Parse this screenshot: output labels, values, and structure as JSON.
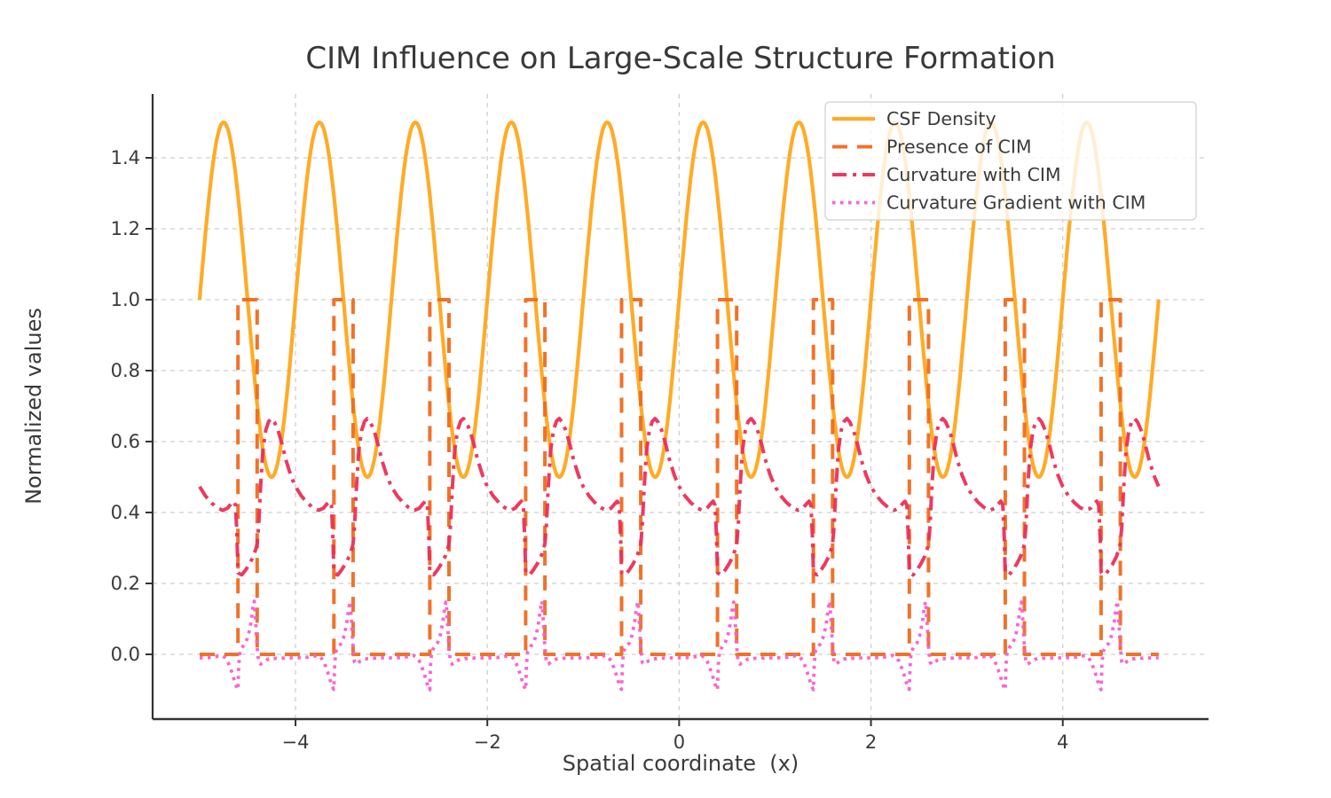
{
  "chart_data": {
    "type": "line",
    "title": "CIM Influence on Large-Scale Structure Formation",
    "xlabel": "Spatial coordinate  (x)",
    "ylabel": "Normalized values",
    "xlim": [
      -5.49,
      5.52
    ],
    "ylim": [
      -0.1825,
      1.58
    ],
    "x_range": [
      -5,
      5
    ],
    "grid": true,
    "grid_color": "#cfcfcf",
    "spine_color": "#333333",
    "text_color": "#3a3a3a",
    "xticks": {
      "values": [
        -4,
        -2,
        0,
        2,
        4
      ],
      "labels": [
        "−4",
        "−2",
        "0",
        "2",
        "4"
      ]
    },
    "yticks": {
      "values": [
        0.0,
        0.2,
        0.4,
        0.6,
        0.8,
        1.0,
        1.2,
        1.4
      ],
      "labels": [
        "0.0",
        "0.2",
        "0.4",
        "0.6",
        "0.8",
        "1.0",
        "1.2",
        "1.4"
      ]
    },
    "legend": {
      "position": "upper right",
      "background": "rgba(255,255,255,0.8)",
      "border": "#d8d8d8"
    },
    "series": [
      {
        "name": "CSF Density",
        "color": "#FFA71B",
        "style": "solid",
        "model": {
          "kind": "sine",
          "offset": 1.0,
          "amplitude": 0.5,
          "period": 1.0,
          "phase": 0.0,
          "peaks_at": [
            -4.75,
            -3.75,
            -2.75,
            -1.75,
            -0.75,
            0.25,
            1.25,
            2.25,
            3.25,
            4.25
          ],
          "max": 1.5,
          "min": 0.5
        }
      },
      {
        "name": "Presence of CIM",
        "color": "#F06A1E",
        "style": "dashed",
        "model": {
          "kind": "pulse",
          "low": 0.0,
          "high": 1.0,
          "period": 1.0,
          "start_offset": 0.4,
          "width": 0.2,
          "pulse_intervals": [
            [
              -4.6,
              -4.4
            ],
            [
              -3.6,
              -3.4
            ],
            [
              -2.6,
              -2.4
            ],
            [
              -1.6,
              -1.4
            ],
            [
              -0.6,
              -0.4
            ],
            [
              0.4,
              0.6
            ],
            [
              1.4,
              1.6
            ],
            [
              2.4,
              2.6
            ],
            [
              3.4,
              3.6
            ],
            [
              4.4,
              4.6
            ]
          ]
        }
      },
      {
        "name": "Curvature with CIM",
        "color": "#EC2E57",
        "style": "dashdot",
        "model": {
          "kind": "periodic_profile",
          "period": 1.0,
          "t_origin": 0.4,
          "points": [
            [
              0.0,
              0.23
            ],
            [
              0.04,
              0.224
            ],
            [
              0.08,
              0.238
            ],
            [
              0.12,
              0.255
            ],
            [
              0.16,
              0.276
            ],
            [
              0.19,
              0.3
            ],
            [
              0.2,
              0.312
            ],
            [
              0.215,
              0.36
            ],
            [
              0.235,
              0.47
            ],
            [
              0.26,
              0.575
            ],
            [
              0.29,
              0.632
            ],
            [
              0.32,
              0.657
            ],
            [
              0.35,
              0.665
            ],
            [
              0.38,
              0.655
            ],
            [
              0.42,
              0.63
            ],
            [
              0.46,
              0.592
            ],
            [
              0.5,
              0.548
            ],
            [
              0.55,
              0.505
            ],
            [
              0.6,
              0.473
            ],
            [
              0.66,
              0.447
            ],
            [
              0.72,
              0.428
            ],
            [
              0.78,
              0.414
            ],
            [
              0.84,
              0.406
            ],
            [
              0.89,
              0.412
            ],
            [
              0.93,
              0.425
            ],
            [
              0.955,
              0.432
            ],
            [
              0.975,
              0.42
            ],
            [
              0.99,
              0.33
            ],
            [
              1.0,
              0.23
            ]
          ]
        }
      },
      {
        "name": "Curvature Gradient with CIM",
        "color": "#F75ECF",
        "style": "dotted",
        "model": {
          "kind": "periodic_profile",
          "period": 1.0,
          "t_origin": 0.4,
          "points": [
            [
              0.0,
              -0.1
            ],
            [
              0.008,
              -0.03
            ],
            [
              0.02,
              0.008
            ],
            [
              0.05,
              0.022
            ],
            [
              0.08,
              0.032
            ],
            [
              0.11,
              0.055
            ],
            [
              0.135,
              0.09
            ],
            [
              0.155,
              0.13
            ],
            [
              0.17,
              0.15
            ],
            [
              0.185,
              0.09
            ],
            [
              0.2,
              0.02
            ],
            [
              0.215,
              -0.022
            ],
            [
              0.235,
              -0.028
            ],
            [
              0.27,
              -0.02
            ],
            [
              0.32,
              -0.013
            ],
            [
              0.4,
              -0.011
            ],
            [
              0.5,
              -0.01
            ],
            [
              0.6,
              -0.01
            ],
            [
              0.7,
              -0.009
            ],
            [
              0.78,
              -0.006
            ],
            [
              0.83,
              -0.003
            ],
            [
              0.86,
              -0.008
            ],
            [
              0.89,
              -0.018
            ],
            [
              0.92,
              -0.038
            ],
            [
              0.95,
              -0.062
            ],
            [
              0.975,
              -0.085
            ],
            [
              1.0,
              -0.1
            ]
          ]
        }
      }
    ]
  }
}
